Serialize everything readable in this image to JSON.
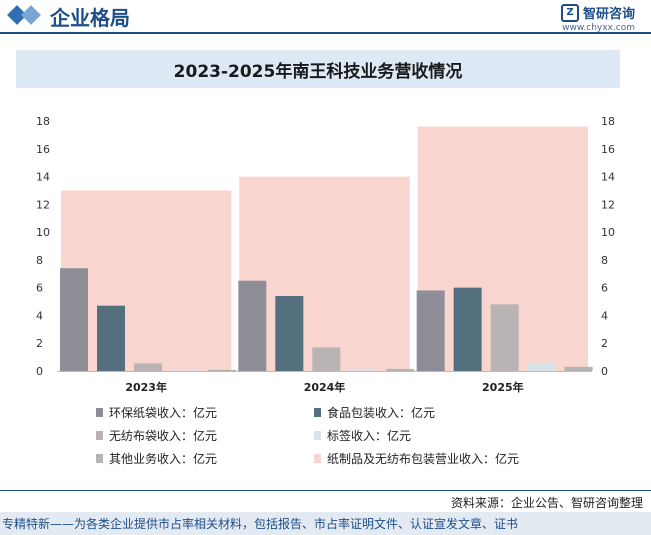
{
  "header": {
    "section_title": "企业格局",
    "brand_name": "智研咨询",
    "brand_url": "www.chyxx.com"
  },
  "chart_data": {
    "type": "bar",
    "title": "2023-2025年南王科技业务营收情况",
    "categories": [
      "2023年",
      "2024年",
      "2025年"
    ],
    "ylim": [
      0,
      18
    ],
    "yticks": [
      0,
      2,
      4,
      6,
      8,
      10,
      12,
      14,
      16,
      18
    ],
    "background_series": {
      "name": "纸制品及无纺布包装营业收入：亿元",
      "color": "#f8d5cf",
      "values": [
        13.0,
        14.0,
        17.6
      ]
    },
    "series": [
      {
        "name": "环保纸袋收入：亿元",
        "color": "#8e8e99",
        "values": [
          7.4,
          6.5,
          5.8
        ]
      },
      {
        "name": "食品包装收入：亿元",
        "color": "#54707f",
        "values": [
          4.7,
          5.4,
          6.0
        ]
      },
      {
        "name": "无纺布袋收入：亿元",
        "color": "#bab3b3",
        "values": [
          0.55,
          1.7,
          4.8
        ]
      },
      {
        "name": "标签收入：亿元",
        "color": "#dce2ea",
        "values": [
          0.05,
          0.15,
          0.6
        ]
      },
      {
        "name": "其他业务收入：亿元",
        "color": "#b4b4b4",
        "values": [
          0.08,
          0.15,
          0.3
        ]
      }
    ],
    "legend_position": "bottom",
    "grid": false
  },
  "source": "资料来源：企业公告、智研咨询整理",
  "footer": "专精特新——为各类企业提供市占率相关材料，包括报告、市占率证明文件、认证宣发文章、证书"
}
